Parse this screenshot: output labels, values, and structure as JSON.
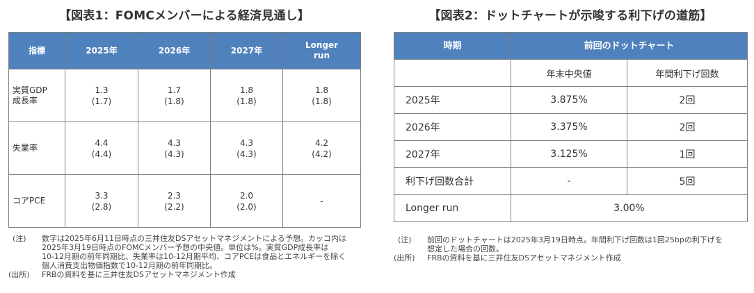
{
  "figure1": {
    "title": "【図表1：FOMCメンバーによる経済見通し】",
    "headers": [
      "指標",
      "2025年",
      "2026年",
      "2027年",
      "Longer",
      "run"
    ],
    "rows": [
      {
        "label1": "実質GDP",
        "label2": "成長率",
        "values": [
          [
            "1.3",
            "(1.7)"
          ],
          [
            "1.7",
            "(1.8)"
          ],
          [
            "1.8",
            "(1.8)"
          ],
          [
            "1.8",
            "(1.8)"
          ]
        ]
      },
      {
        "label1": "失業率",
        "label2": "",
        "values": [
          [
            "4.4",
            "(4.4)"
          ],
          [
            "4.3",
            "(4.3)"
          ],
          [
            "4.3",
            "(4.3)"
          ],
          [
            "4.2",
            "(4.2)"
          ]
        ]
      },
      {
        "label1": "コアPCE",
        "label2": "",
        "values": [
          [
            "3.3",
            "(2.8)"
          ],
          [
            "2.3",
            "(2.2)"
          ],
          [
            "2.0",
            "(2.0)"
          ],
          [
            "-",
            ""
          ]
        ]
      }
    ],
    "note_label": "(注)",
    "note_lines": [
      "数字は2025年6月11日時点の三井住友DSアセットマネジメントによる予想。カッコ内は",
      "2025年3月19日時点のFOMCメンバー予想の中央値。単位は%。実質GDP成長率は",
      "10-12月期の前年同期比、失業率は10-12月期平均、コアPCEは食品とエネルギーを除く",
      "個人消費支出物価指数で10-12月期の前年同期比。"
    ],
    "source_label": "(出所)",
    "source_text": "FRBの資料を基に三井住友DSアセットマネジメント作成"
  },
  "figure2": {
    "title": "【図表2：ドットチャートが示唆する利下げの道筋】",
    "header_period": "時期",
    "header_dot": "前回のドットチャート",
    "sub_median": "年末中央値",
    "sub_cuts": "年間利下げ回数",
    "rows": [
      {
        "label": "2025年",
        "median": "3.875%",
        "cuts": "2回"
      },
      {
        "label": "2026年",
        "median": "3.375%",
        "cuts": "2回"
      },
      {
        "label": "2027年",
        "median": "3.125%",
        "cuts": "1回"
      },
      {
        "label": "利下げ回数合計",
        "median": "-",
        "cuts": "5回"
      }
    ],
    "longer_run_label": "Longer run",
    "longer_run_value": "3.00%",
    "note_label": "(注)",
    "note_lines": [
      "前回のドットチャートは2025年3月19日時点。年間利下げ回数は1回25bpの利下げを",
      "想定した場合の回数。"
    ],
    "source_label": "(出所)",
    "source_text": "FRBの資料を基に三井住友DSアセットマネジメント作成"
  },
  "colors": {
    "header_bg": "#4f81bd",
    "header_text": "#ffffff",
    "border": "#7f7f7f"
  }
}
